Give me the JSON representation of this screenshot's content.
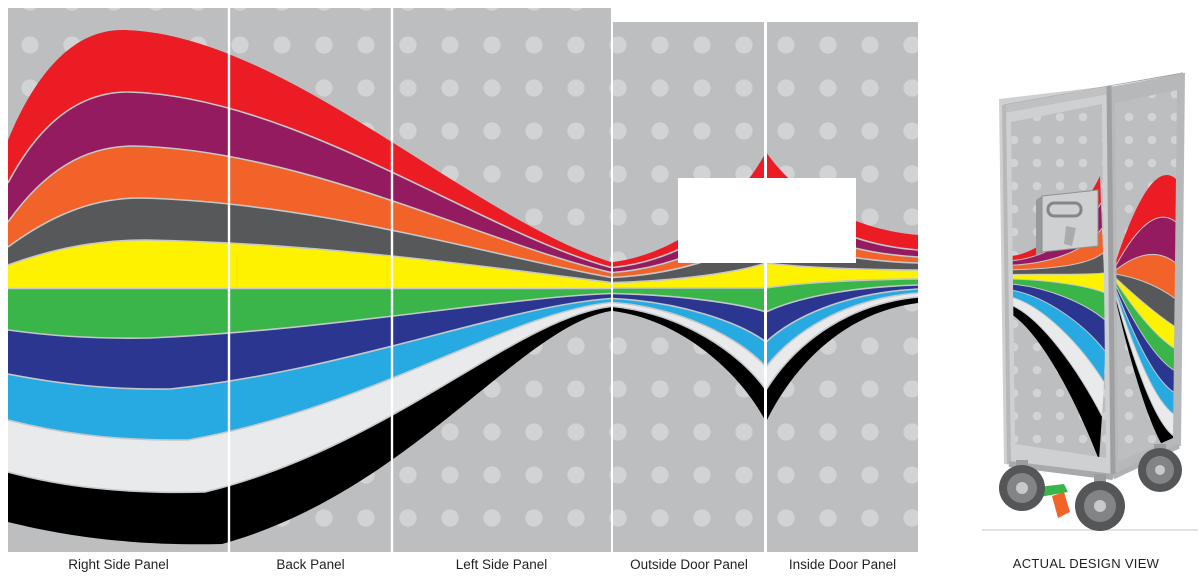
{
  "page": {
    "background": "#FFFFFF"
  },
  "panels": {
    "labels": [
      "Right Side Panel",
      "Back Panel",
      "Left Side Panel",
      "Outside Door Panel",
      "Inside Door Panel"
    ]
  },
  "preview": {
    "caption": "ACTUAL DESIGN VIEW"
  },
  "design": {
    "background": "#BCBEC0",
    "dot_color": "#D2D3D5",
    "separator_color": "#C5C7C9",
    "divider_color": "#FFFFFF",
    "logo_placeholder_color": "#FFFFFF",
    "stripes": [
      {
        "name": "red",
        "hex": "#EC1C24"
      },
      {
        "name": "magenta",
        "hex": "#951B60"
      },
      {
        "name": "orange",
        "hex": "#F2632A"
      },
      {
        "name": "dark-gray",
        "hex": "#57585A"
      },
      {
        "name": "yellow",
        "hex": "#FFF200"
      },
      {
        "name": "green",
        "hex": "#3AB54A"
      },
      {
        "name": "dark-blue",
        "hex": "#2B3691"
      },
      {
        "name": "light-blue",
        "hex": "#27AAE1"
      },
      {
        "name": "off-white",
        "hex": "#E9EAEC"
      },
      {
        "name": "black",
        "hex": "#000000"
      }
    ],
    "trolley": {
      "frame_color": "#C9CACC",
      "panel_color": "#BCBEC0",
      "wheel_color": "#555658",
      "pedal_green": "#3AB54A",
      "pedal_orange": "#F2632A"
    }
  }
}
